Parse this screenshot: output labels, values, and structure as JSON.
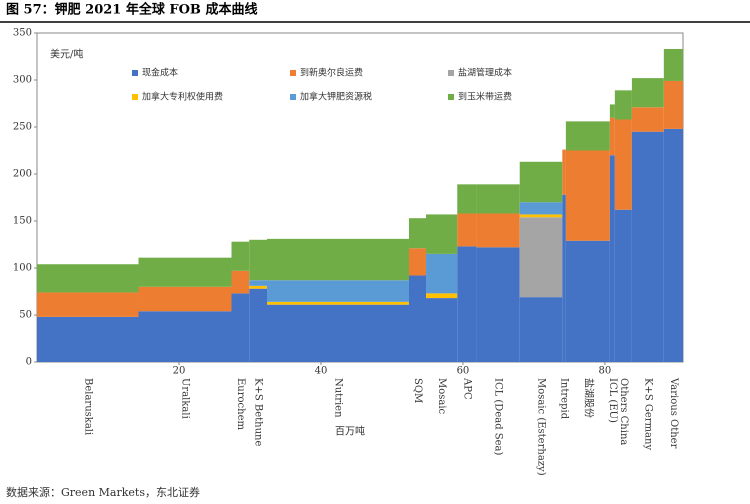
{
  "chart_data": {
    "type": "variwide_stacked_bar",
    "title": "图 57：钾肥 2021 年全球 FOB 成本曲线",
    "y_label": "美元/吨",
    "x_label": "百万吨",
    "source": "数据来源：Green Markets，东北证券",
    "categories": [
      "Belaruskali",
      "Uralkali",
      "Eurochem",
      "K+S Bethune",
      "Nutrien",
      "SQM",
      "Mosaic",
      "APC",
      "ICL (Dead Sea)",
      "Mosaic (Esterhazy)",
      "Intrepid",
      "盐湖股份",
      "ICL (EU)",
      "Others China",
      "K+S Germany",
      "Various Other"
    ],
    "bins": [
      0,
      14.3,
      27.4,
      29.9,
      32.4,
      52.4,
      54.8,
      59.2,
      61.9,
      68,
      74,
      74.5,
      80.7,
      81.4,
      83.8,
      88.3,
      91
    ],
    "series": [
      {
        "name": "现金成本",
        "color": "#4472c4",
        "values": [
          48,
          54,
          73,
          78,
          61,
          92,
          68,
          123,
          122,
          69,
          178,
          129,
          220,
          162,
          245,
          248
        ]
      },
      {
        "name": "到新奥尔良运费",
        "color": "#ed7d31",
        "values": [
          26,
          26,
          24,
          0,
          0,
          29,
          0,
          35,
          36,
          0,
          48,
          96,
          40,
          96,
          26,
          51
        ]
      },
      {
        "name": "盐湖管理成本",
        "color": "#a5a5a5",
        "values": [
          0,
          0,
          0,
          0,
          0,
          0,
          0,
          0,
          0,
          85,
          0,
          0,
          0,
          0,
          0,
          0
        ]
      },
      {
        "name": "加拿大专利权使用费",
        "color": "#ffc000",
        "values": [
          0,
          0,
          0,
          3,
          3,
          0,
          5,
          0,
          0,
          3,
          0,
          0,
          0,
          0,
          0,
          0
        ]
      },
      {
        "name": "加拿大钾肥资源税",
        "color": "#5b9bd5",
        "values": [
          0,
          0,
          0,
          6,
          23,
          0,
          42,
          0,
          0,
          13,
          0,
          0,
          0,
          0,
          0,
          0
        ]
      },
      {
        "name": "到玉米带运费",
        "color": "#70ad47",
        "values": [
          30,
          31,
          31,
          43,
          44,
          32,
          42,
          31,
          31,
          43,
          0,
          31,
          14,
          31,
          31,
          34
        ]
      }
    ],
    "xlim": [
      0,
      91
    ],
    "xticks": [
      20,
      40,
      60,
      80
    ],
    "ylim": [
      0,
      350
    ],
    "yticks": [
      0,
      50,
      100,
      150,
      200,
      250,
      300,
      350
    ]
  }
}
